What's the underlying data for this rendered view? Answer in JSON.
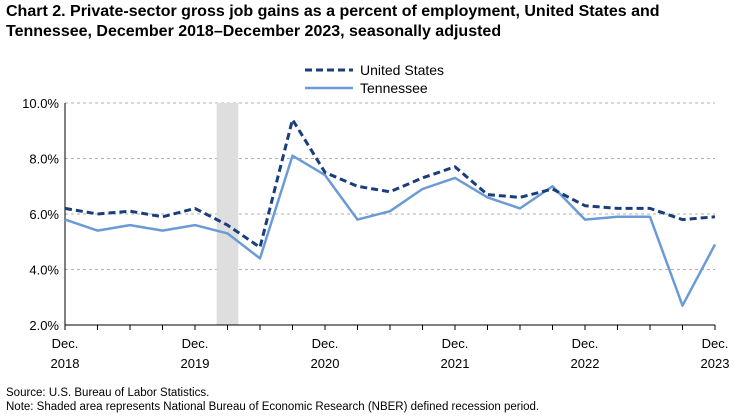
{
  "chart_data": {
    "type": "line",
    "title": "Chart 2. Private-sector gross job gains as a percent of employment, United States and Tennessee, December 2018–December 2023, seasonally adjusted",
    "xlabel": "",
    "ylabel": "",
    "ylim": [
      2.0,
      10.0
    ],
    "yticks": [
      "2.0%",
      "4.0%",
      "6.0%",
      "8.0%",
      "10.0%"
    ],
    "xticks": [
      {
        "month": "Dec.",
        "year": "2018"
      },
      {
        "month": "Dec.",
        "year": "2019"
      },
      {
        "month": "Dec.",
        "year": "2020"
      },
      {
        "month": "Dec.",
        "year": "2021"
      },
      {
        "month": "Dec.",
        "year": "2022"
      },
      {
        "month": "Dec.",
        "year": "2023"
      }
    ],
    "x": [
      "Dec 2018",
      "Mar 2019",
      "Jun 2019",
      "Sep 2019",
      "Dec 2019",
      "Mar 2020",
      "Jun 2020",
      "Sep 2020",
      "Dec 2020",
      "Mar 2021",
      "Jun 2021",
      "Sep 2021",
      "Dec 2021",
      "Mar 2022",
      "Jun 2022",
      "Sep 2022",
      "Dec 2022",
      "Mar 2023",
      "Jun 2023",
      "Sep 2023",
      "Dec 2023"
    ],
    "recession_shading": {
      "start": "Feb 2020",
      "end": "Apr 2020"
    },
    "legend_position": "top-center",
    "grid": "horizontal dashed",
    "series": [
      {
        "name": "United States",
        "style": "dashed",
        "color": "#1a3e7c",
        "values": [
          6.2,
          6.0,
          6.1,
          5.9,
          6.2,
          5.6,
          4.8,
          9.4,
          7.5,
          7.0,
          6.8,
          7.3,
          7.7,
          6.7,
          6.6,
          6.9,
          6.3,
          6.2,
          6.2,
          5.8,
          5.9
        ]
      },
      {
        "name": "Tennessee",
        "style": "solid",
        "color": "#6b9bd6",
        "values": [
          5.8,
          5.4,
          5.6,
          5.4,
          5.6,
          5.3,
          4.4,
          8.1,
          7.4,
          5.8,
          6.1,
          6.9,
          7.3,
          6.6,
          6.2,
          7.0,
          5.8,
          5.9,
          5.9,
          2.7,
          4.9
        ]
      }
    ]
  },
  "footer": {
    "source": "Source: U.S. Bureau of Labor Statistics.",
    "note": "Note: Shaded area represents National Bureau of Economic Research (NBER) defined recession period."
  }
}
